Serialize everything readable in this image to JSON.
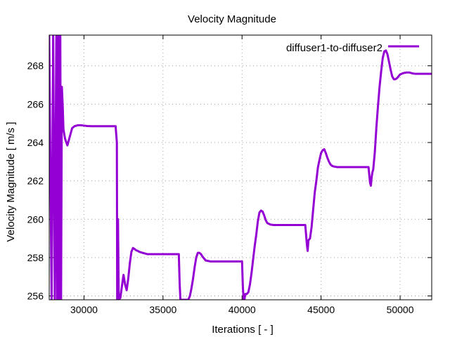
{
  "chart_data": {
    "type": "line",
    "title": "Velocity Magnitude",
    "xlabel": "Iterations [ - ]",
    "ylabel": "Velocity Magnitude [ m/s ]",
    "xlim": [
      27800,
      52000
    ],
    "ylim": [
      255.8,
      269.6
    ],
    "xticks": [
      30000,
      35000,
      40000,
      45000,
      50000
    ],
    "yticks": [
      256,
      258,
      260,
      262,
      264,
      266,
      268
    ],
    "grid": true,
    "legend_position": "top-right",
    "series": [
      {
        "name": "diffuser1-to-diffuser2",
        "color": "#9400D3",
        "x": [
          27800,
          27950,
          28050,
          28150,
          28250,
          28300,
          28340,
          28380,
          28420,
          28460,
          28500,
          28550,
          28600,
          28650,
          28700,
          28800,
          28950,
          29100,
          29250,
          29400,
          29600,
          29800,
          30000,
          30200,
          30500,
          31000,
          31500,
          32000,
          32080,
          32100,
          32150,
          32200,
          32300,
          32400,
          32500,
          32600,
          32700,
          32800,
          32900,
          33000,
          33100,
          33200,
          33300,
          33400,
          33500,
          33700,
          34000,
          34500,
          35000,
          35500,
          36000,
          36050,
          36100,
          36200,
          36300,
          36400,
          36500,
          36600,
          36700,
          36800,
          36900,
          37000,
          37100,
          37200,
          37300,
          37400,
          37500,
          37700,
          38000,
          38500,
          39000,
          39500,
          40000,
          40050,
          40100,
          40150,
          40200,
          40300,
          40400,
          40500,
          40600,
          40700,
          40800,
          40900,
          41000,
          41100,
          41200,
          41300,
          41400,
          41500,
          41600,
          41800,
          42000,
          42500,
          43000,
          43500,
          44000,
          44100,
          44150,
          44200,
          44250,
          44300,
          44400,
          44500,
          44600,
          44700,
          44800,
          44900,
          45000,
          45100,
          45200,
          45300,
          45400,
          45500,
          45600,
          45700,
          45800,
          46000,
          46500,
          47000,
          47500,
          48000,
          48100,
          48150,
          48200,
          48250,
          48300,
          48400,
          48500,
          48600,
          48700,
          48800,
          48900,
          49000,
          49100,
          49200,
          49300,
          49400,
          49500,
          49600,
          49700,
          49800,
          49900,
          50000,
          50200,
          50400,
          50600,
          50800,
          51000,
          51200,
          51400,
          51600,
          51800,
          52000
        ],
        "values": [
          269.6,
          255.8,
          269.6,
          255.8,
          269.6,
          255.8,
          269.6,
          255.8,
          269.6,
          255.8,
          269.6,
          255.8,
          266.9,
          266.0,
          264.7,
          264.2,
          263.85,
          264.3,
          264.75,
          264.85,
          264.9,
          264.9,
          264.88,
          264.86,
          264.85,
          264.85,
          264.85,
          264.85,
          264.0,
          255.8,
          260.0,
          255.8,
          255.9,
          256.5,
          257.1,
          256.6,
          256.3,
          256.9,
          257.7,
          258.3,
          258.5,
          258.45,
          258.38,
          258.35,
          258.3,
          258.25,
          258.18,
          258.18,
          258.18,
          258.18,
          258.18,
          256.7,
          255.8,
          255.8,
          255.8,
          255.8,
          255.8,
          255.8,
          256.0,
          256.4,
          256.9,
          257.5,
          258.0,
          258.25,
          258.25,
          258.18,
          258.05,
          257.85,
          257.8,
          257.8,
          257.8,
          257.8,
          257.8,
          256.5,
          255.8,
          255.8,
          256.1,
          256.1,
          256.2,
          256.6,
          257.2,
          257.9,
          258.6,
          259.2,
          259.9,
          260.35,
          260.45,
          260.4,
          260.2,
          259.95,
          259.8,
          259.72,
          259.7,
          259.7,
          259.7,
          259.7,
          259.7,
          258.7,
          258.35,
          258.9,
          258.95,
          259.0,
          259.6,
          260.5,
          261.4,
          262.0,
          262.7,
          263.1,
          263.45,
          263.6,
          263.65,
          263.45,
          263.2,
          263.0,
          262.85,
          262.78,
          262.75,
          262.72,
          262.72,
          262.72,
          262.72,
          262.72,
          261.9,
          261.75,
          262.2,
          262.45,
          262.6,
          263.5,
          264.8,
          265.9,
          266.9,
          267.7,
          268.4,
          268.75,
          268.8,
          268.6,
          268.2,
          267.8,
          267.45,
          267.3,
          267.3,
          267.35,
          267.45,
          267.55,
          267.62,
          267.65,
          267.65,
          267.6,
          267.58,
          267.58,
          267.58,
          267.58,
          267.58,
          267.58
        ]
      }
    ]
  }
}
